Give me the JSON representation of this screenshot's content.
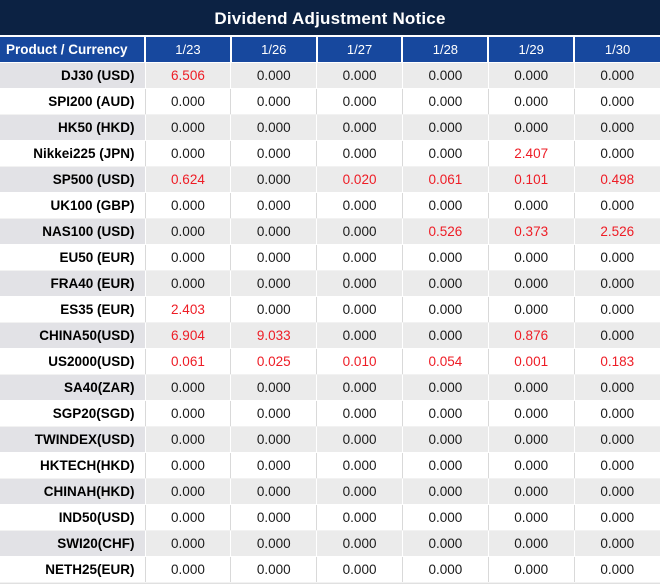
{
  "title": "Dividend Adjustment Notice",
  "table": {
    "header": {
      "product_label": "Product / Currency",
      "dates": [
        "1/23",
        "1/26",
        "1/27",
        "1/28",
        "1/29",
        "1/30"
      ]
    },
    "rows": [
      {
        "product": "DJ30 (USD)",
        "values": [
          "6.506",
          "0.000",
          "0.000",
          "0.000",
          "0.000",
          "0.000"
        ],
        "red": [
          0
        ]
      },
      {
        "product": "SPI200 (AUD)",
        "values": [
          "0.000",
          "0.000",
          "0.000",
          "0.000",
          "0.000",
          "0.000"
        ],
        "red": []
      },
      {
        "product": "HK50 (HKD)",
        "values": [
          "0.000",
          "0.000",
          "0.000",
          "0.000",
          "0.000",
          "0.000"
        ],
        "red": []
      },
      {
        "product": "Nikkei225 (JPN)",
        "values": [
          "0.000",
          "0.000",
          "0.000",
          "0.000",
          "2.407",
          "0.000"
        ],
        "red": [
          4
        ]
      },
      {
        "product": "SP500 (USD)",
        "values": [
          "0.624",
          "0.000",
          "0.020",
          "0.061",
          "0.101",
          "0.498"
        ],
        "red": [
          0,
          2,
          3,
          4,
          5
        ]
      },
      {
        "product": "UK100 (GBP)",
        "values": [
          "0.000",
          "0.000",
          "0.000",
          "0.000",
          "0.000",
          "0.000"
        ],
        "red": []
      },
      {
        "product": "NAS100 (USD)",
        "values": [
          "0.000",
          "0.000",
          "0.000",
          "0.526",
          "0.373",
          "2.526"
        ],
        "red": [
          3,
          4,
          5
        ]
      },
      {
        "product": "EU50 (EUR)",
        "values": [
          "0.000",
          "0.000",
          "0.000",
          "0.000",
          "0.000",
          "0.000"
        ],
        "red": []
      },
      {
        "product": "FRA40 (EUR)",
        "values": [
          "0.000",
          "0.000",
          "0.000",
          "0.000",
          "0.000",
          "0.000"
        ],
        "red": []
      },
      {
        "product": "ES35 (EUR)",
        "values": [
          "2.403",
          "0.000",
          "0.000",
          "0.000",
          "0.000",
          "0.000"
        ],
        "red": [
          0
        ]
      },
      {
        "product": "CHINA50(USD)",
        "values": [
          "6.904",
          "9.033",
          "0.000",
          "0.000",
          "0.876",
          "0.000"
        ],
        "red": [
          0,
          1,
          4
        ]
      },
      {
        "product": "US2000(USD)",
        "values": [
          "0.061",
          "0.025",
          "0.010",
          "0.054",
          "0.001",
          "0.183"
        ],
        "red": [
          0,
          1,
          2,
          3,
          4,
          5
        ]
      },
      {
        "product": "SA40(ZAR)",
        "values": [
          "0.000",
          "0.000",
          "0.000",
          "0.000",
          "0.000",
          "0.000"
        ],
        "red": []
      },
      {
        "product": "SGP20(SGD)",
        "values": [
          "0.000",
          "0.000",
          "0.000",
          "0.000",
          "0.000",
          "0.000"
        ],
        "red": []
      },
      {
        "product": "TWINDEX(USD)",
        "values": [
          "0.000",
          "0.000",
          "0.000",
          "0.000",
          "0.000",
          "0.000"
        ],
        "red": []
      },
      {
        "product": "HKTECH(HKD)",
        "values": [
          "0.000",
          "0.000",
          "0.000",
          "0.000",
          "0.000",
          "0.000"
        ],
        "red": []
      },
      {
        "product": "CHINAH(HKD)",
        "values": [
          "0.000",
          "0.000",
          "0.000",
          "0.000",
          "0.000",
          "0.000"
        ],
        "red": []
      },
      {
        "product": "IND50(USD)",
        "values": [
          "0.000",
          "0.000",
          "0.000",
          "0.000",
          "0.000",
          "0.000"
        ],
        "red": []
      },
      {
        "product": "SWI20(CHF)",
        "values": [
          "0.000",
          "0.000",
          "0.000",
          "0.000",
          "0.000",
          "0.000"
        ],
        "red": []
      },
      {
        "product": "NETH25(EUR)",
        "values": [
          "0.000",
          "0.000",
          "0.000",
          "0.000",
          "0.000",
          "0.000"
        ],
        "red": []
      }
    ]
  },
  "colors": {
    "title_bg": "#0C2243",
    "header_bg": "#17489E",
    "red_value": "#EE1C25",
    "stripe_value_bg": "#EBEBEB",
    "stripe_label_bg": "#E2E2E6",
    "value_text": "#1A1A1A",
    "grid_line": "#D9D9D9"
  }
}
